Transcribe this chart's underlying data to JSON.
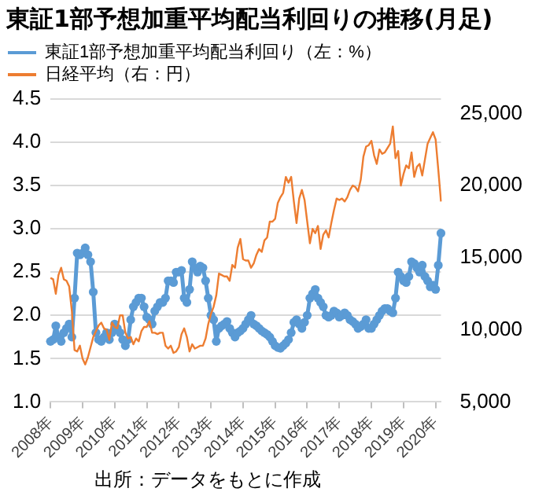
{
  "chart_data": {
    "type": "line",
    "title": "東証1部予想加重平均配当利回りの推移(月足)",
    "annotations": [
      "出所：データをもとに作成"
    ],
    "categories": [
      "2008年",
      null,
      null,
      null,
      null,
      null,
      null,
      null,
      null,
      null,
      null,
      null,
      "2009年",
      null,
      null,
      null,
      null,
      null,
      null,
      null,
      null,
      null,
      null,
      null,
      "2010年",
      null,
      null,
      null,
      null,
      null,
      null,
      null,
      null,
      null,
      null,
      null,
      "2011年",
      null,
      null,
      null,
      null,
      null,
      null,
      null,
      null,
      null,
      null,
      null,
      "2012年",
      null,
      null,
      null,
      null,
      null,
      null,
      null,
      null,
      null,
      null,
      null,
      "2013年",
      null,
      null,
      null,
      null,
      null,
      null,
      null,
      null,
      null,
      null,
      null,
      "2014年",
      null,
      null,
      null,
      null,
      null,
      null,
      null,
      null,
      null,
      null,
      null,
      "2015年",
      null,
      null,
      null,
      null,
      null,
      null,
      null,
      null,
      null,
      null,
      null,
      "2016年",
      null,
      null,
      null,
      null,
      null,
      null,
      null,
      null,
      null,
      null,
      null,
      "2017年",
      null,
      null,
      null,
      null,
      null,
      null,
      null,
      null,
      null,
      null,
      null,
      "2018年",
      null,
      null,
      null,
      null,
      null,
      null,
      null,
      null,
      null,
      null,
      null,
      "2019年",
      null,
      null,
      null,
      null,
      null,
      null,
      null,
      null,
      null,
      null,
      null,
      "2020年",
      null,
      null
    ],
    "series": [
      {
        "name": "東証1部予想加重平均配当利回り（左：%）",
        "color": "#5b9bd5",
        "marker": "circle",
        "values": [
          1.7,
          1.72,
          1.88,
          1.75,
          1.7,
          1.8,
          1.85,
          1.9,
          1.75,
          2.2,
          2.72,
          2.7,
          2.72,
          2.78,
          2.7,
          2.62,
          2.27,
          1.8,
          1.72,
          1.7,
          1.75,
          1.8,
          1.72,
          1.8,
          1.9,
          1.85,
          1.8,
          1.72,
          1.65,
          1.72,
          1.95,
          2.1,
          2.15,
          2.2,
          2.2,
          2.1,
          1.98,
          1.95,
          1.9,
          2.05,
          2.1,
          2.15,
          2.15,
          2.2,
          2.4,
          2.4,
          2.38,
          2.5,
          2.5,
          2.52,
          2.2,
          2.15,
          2.3,
          2.62,
          2.55,
          2.5,
          2.57,
          2.55,
          2.4,
          2.2,
          2.0,
          1.95,
          1.7,
          1.85,
          1.88,
          1.9,
          1.93,
          1.85,
          1.8,
          1.75,
          1.8,
          1.82,
          1.85,
          1.9,
          1.95,
          2.0,
          1.9,
          1.88,
          1.85,
          1.82,
          1.8,
          1.78,
          1.75,
          1.7,
          1.65,
          1.63,
          1.62,
          1.65,
          1.68,
          1.72,
          1.8,
          1.92,
          1.95,
          1.9,
          1.85,
          1.92,
          2.0,
          2.2,
          2.25,
          2.3,
          2.2,
          2.15,
          2.1,
          2.0,
          1.98,
          2.0,
          2.05,
          2.03,
          1.98,
          2.0,
          2.03,
          2.0,
          1.95,
          1.93,
          1.9,
          1.85,
          1.87,
          1.9,
          1.95,
          1.85,
          1.85,
          1.9,
          1.95,
          2.0,
          2.05,
          2.08,
          2.08,
          2.05,
          2.03,
          2.2,
          2.5,
          2.45,
          2.4,
          2.38,
          2.45,
          2.62,
          2.6,
          2.55,
          2.5,
          2.58,
          2.45,
          2.4,
          2.33,
          2.35,
          2.3,
          2.58,
          2.95
        ]
      },
      {
        "name": "日経平均（右：円）",
        "color": "#ed7d31",
        "marker": "none",
        "axis": "y2",
        "values": [
          13600,
          13500,
          12500,
          13800,
          14300,
          13500,
          13400,
          13000,
          11300,
          8600,
          8500,
          8900,
          8000,
          7600,
          8100,
          8800,
          9500,
          9900,
          10300,
          10500,
          10100,
          10000,
          9300,
          10500,
          10200,
          10100,
          11000,
          11000,
          9800,
          9400,
          9500,
          9000,
          9400,
          9200,
          9900,
          10200,
          10200,
          10600,
          9800,
          9800,
          9700,
          9800,
          9800,
          8900,
          8700,
          8900,
          8400,
          8500,
          8800,
          9700,
          10100,
          9500,
          8500,
          9000,
          8700,
          8800,
          8900,
          8900,
          9400,
          10400,
          11100,
          11600,
          12400,
          13900,
          13800,
          13700,
          13700,
          13400,
          14500,
          14300,
          15700,
          16300,
          14900,
          14800,
          14800,
          14300,
          14600,
          15200,
          15600,
          15400,
          16200,
          16400,
          17500,
          17500,
          17700,
          18800,
          19200,
          19500,
          20600,
          20200,
          20600,
          18900,
          17400,
          19100,
          19700,
          19000,
          17500,
          16000,
          17000,
          16700,
          17200,
          15600,
          16600,
          16900,
          16400,
          17400,
          18300,
          19100,
          19000,
          19100,
          18900,
          19200,
          19700,
          20000,
          19900,
          19600,
          20400,
          22000,
          22700,
          22800,
          23100,
          22100,
          21500,
          22500,
          22200,
          22300,
          22600,
          22900,
          24100,
          21900,
          22400,
          20000,
          20800,
          21400,
          21200,
          22300,
          20600,
          21300,
          21500,
          20700,
          21800,
          22900,
          23300,
          23700,
          23200,
          21100,
          18900
        ]
      }
    ],
    "ylim": [
      1,
      4.5
    ],
    "yticks": [
      {
        "value": 1,
        "label": "1.0"
      },
      1.5,
      {
        "value": 2,
        "label": "2.0"
      },
      2.5,
      {
        "value": 3,
        "label": "3.0"
      },
      3.5,
      {
        "value": 4,
        "label": "4.0"
      },
      4.5
    ],
    "y2lim": [
      5000,
      26000
    ],
    "y2ticks": [
      {
        "value": 5000,
        "label": "5,000"
      },
      {
        "value": 10000,
        "label": "10,000"
      },
      {
        "value": 15000,
        "label": "15,000"
      },
      {
        "value": 20000,
        "label": "20,000"
      },
      {
        "value": 25000,
        "label": "25,000"
      }
    ],
    "grid": "y",
    "legend": "top left",
    "line_style": "solid"
  }
}
